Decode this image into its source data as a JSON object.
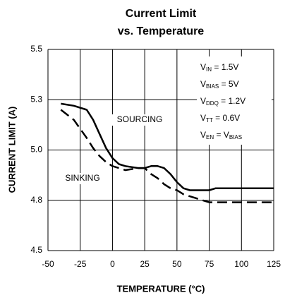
{
  "chart_data": {
    "type": "line",
    "title": [
      "Current Limit",
      "vs. Temperature"
    ],
    "xlabel": "TEMPERATURE (°C)",
    "ylabel": "CURRENT LIMIT (A)",
    "x": [
      -40,
      -30,
      -20,
      -15,
      -10,
      -5,
      0,
      5,
      10,
      20,
      25,
      30,
      35,
      40,
      45,
      50,
      55,
      60,
      65,
      70,
      75,
      80,
      125
    ],
    "series": [
      {
        "name": "SOURCING",
        "color": "#000000",
        "dash": false,
        "values": [
          5.23,
          5.22,
          5.2,
          5.15,
          5.08,
          5.01,
          4.96,
          4.93,
          4.92,
          4.91,
          4.91,
          4.92,
          4.92,
          4.91,
          4.88,
          4.84,
          4.81,
          4.8,
          4.8,
          4.8,
          4.8,
          4.81,
          4.81
        ]
      },
      {
        "name": "SINKING",
        "color": "#000000",
        "dash": true,
        "values": [
          5.2,
          5.15,
          5.06,
          5.01,
          4.97,
          4.94,
          4.92,
          4.91,
          4.9,
          4.91,
          4.91,
          4.88,
          4.86,
          4.83,
          4.81,
          4.8,
          4.78,
          4.77,
          4.76,
          4.75,
          4.74,
          4.74,
          4.74
        ]
      }
    ],
    "xlim": [
      -50,
      125
    ],
    "xticks": [
      -50,
      -25,
      0,
      25,
      50,
      75,
      100,
      125
    ],
    "ylim": [
      4.5,
      5.5
    ],
    "yticks": [
      4.5,
      {
        "value": 4.75,
        "label": "4.8"
      },
      {
        "value": 5,
        "label": "5.0"
      },
      {
        "value": 5.25,
        "label": "5.3"
      },
      5.5
    ],
    "grid": true,
    "conditions": [
      [
        "V",
        "IN",
        " = 1.5V"
      ],
      [
        "V",
        "BIAS",
        " = 5V"
      ],
      [
        "V",
        "DDQ",
        " = 1.2V"
      ],
      [
        "V",
        "TT",
        " = 0.6V"
      ],
      [
        "V",
        "EN",
        " = V",
        "BIAS"
      ]
    ]
  }
}
